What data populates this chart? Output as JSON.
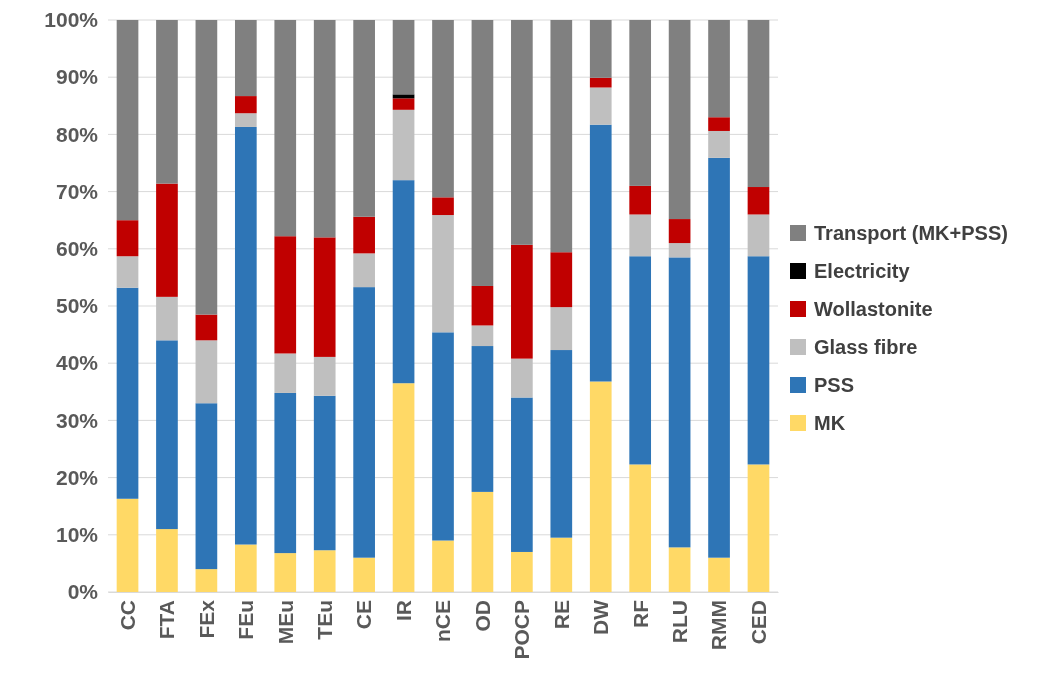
{
  "chart_data": {
    "type": "bar",
    "stacked": true,
    "categories": [
      "CC",
      "FTA",
      "FEx",
      "FEu",
      "MEu",
      "TEu",
      "CE",
      "IR",
      "nCE",
      "OD",
      "POCP",
      "RE",
      "DW",
      "RF",
      "RLU",
      "RMM",
      "CED"
    ],
    "ylim": [
      0,
      100
    ],
    "yticks": [
      {
        "value": 0,
        "label": "0%"
      },
      {
        "value": 10,
        "label": "10%"
      },
      {
        "value": 20,
        "label": "20%"
      },
      {
        "value": 30,
        "label": "30%"
      },
      {
        "value": 40,
        "label": "40%"
      },
      {
        "value": 50,
        "label": "50%"
      },
      {
        "value": 60,
        "label": "60%"
      },
      {
        "value": 70,
        "label": "70%"
      },
      {
        "value": 80,
        "label": "80%"
      },
      {
        "value": 90,
        "label": "90%"
      },
      {
        "value": 100,
        "label": "100%"
      }
    ],
    "grid": "y",
    "legend": "right",
    "series": [
      {
        "name": "MK",
        "color": "#ffd966",
        "values": [
          16.3,
          11,
          4,
          8.3,
          6.8,
          7.3,
          6,
          36.5,
          9,
          17.5,
          7,
          9.5,
          36.8,
          22.3,
          7.8,
          6,
          22.3
        ]
      },
      {
        "name": "PSS",
        "color": "#2e75b6",
        "values": [
          36.9,
          33,
          29,
          73,
          28,
          27,
          47.3,
          35.5,
          36.4,
          25.5,
          27,
          32.8,
          44.9,
          36.4,
          50.7,
          69.9,
          36.4
        ]
      },
      {
        "name": "Glass fibre",
        "color": "#bfbfbf",
        "values": [
          5.5,
          7.6,
          11,
          2.4,
          6.9,
          6.8,
          5.9,
          12.3,
          20.5,
          3.6,
          6.8,
          7.5,
          6.5,
          7.3,
          2.5,
          4.7,
          7.3
        ]
      },
      {
        "name": "Wollastonite",
        "color": "#c00000",
        "values": [
          6.3,
          19.8,
          4.5,
          3,
          20.5,
          20.9,
          6.4,
          2,
          3.1,
          6.9,
          19.9,
          9.6,
          1.7,
          5,
          4.2,
          2.4,
          4.8
        ]
      },
      {
        "name": "Electricity",
        "color": "#000000",
        "values": [
          0,
          0,
          0,
          0,
          0,
          0,
          0,
          0.7,
          0,
          0,
          0,
          0,
          0,
          0,
          0,
          0,
          0
        ]
      },
      {
        "name": "Transport (MK+PSS)",
        "color": "#808080",
        "values": [
          35,
          28.6,
          51.5,
          13.3,
          37.8,
          38,
          34.4,
          13,
          31,
          46.5,
          39.3,
          40.6,
          10.1,
          29,
          34.8,
          17,
          29.2
        ]
      }
    ]
  }
}
